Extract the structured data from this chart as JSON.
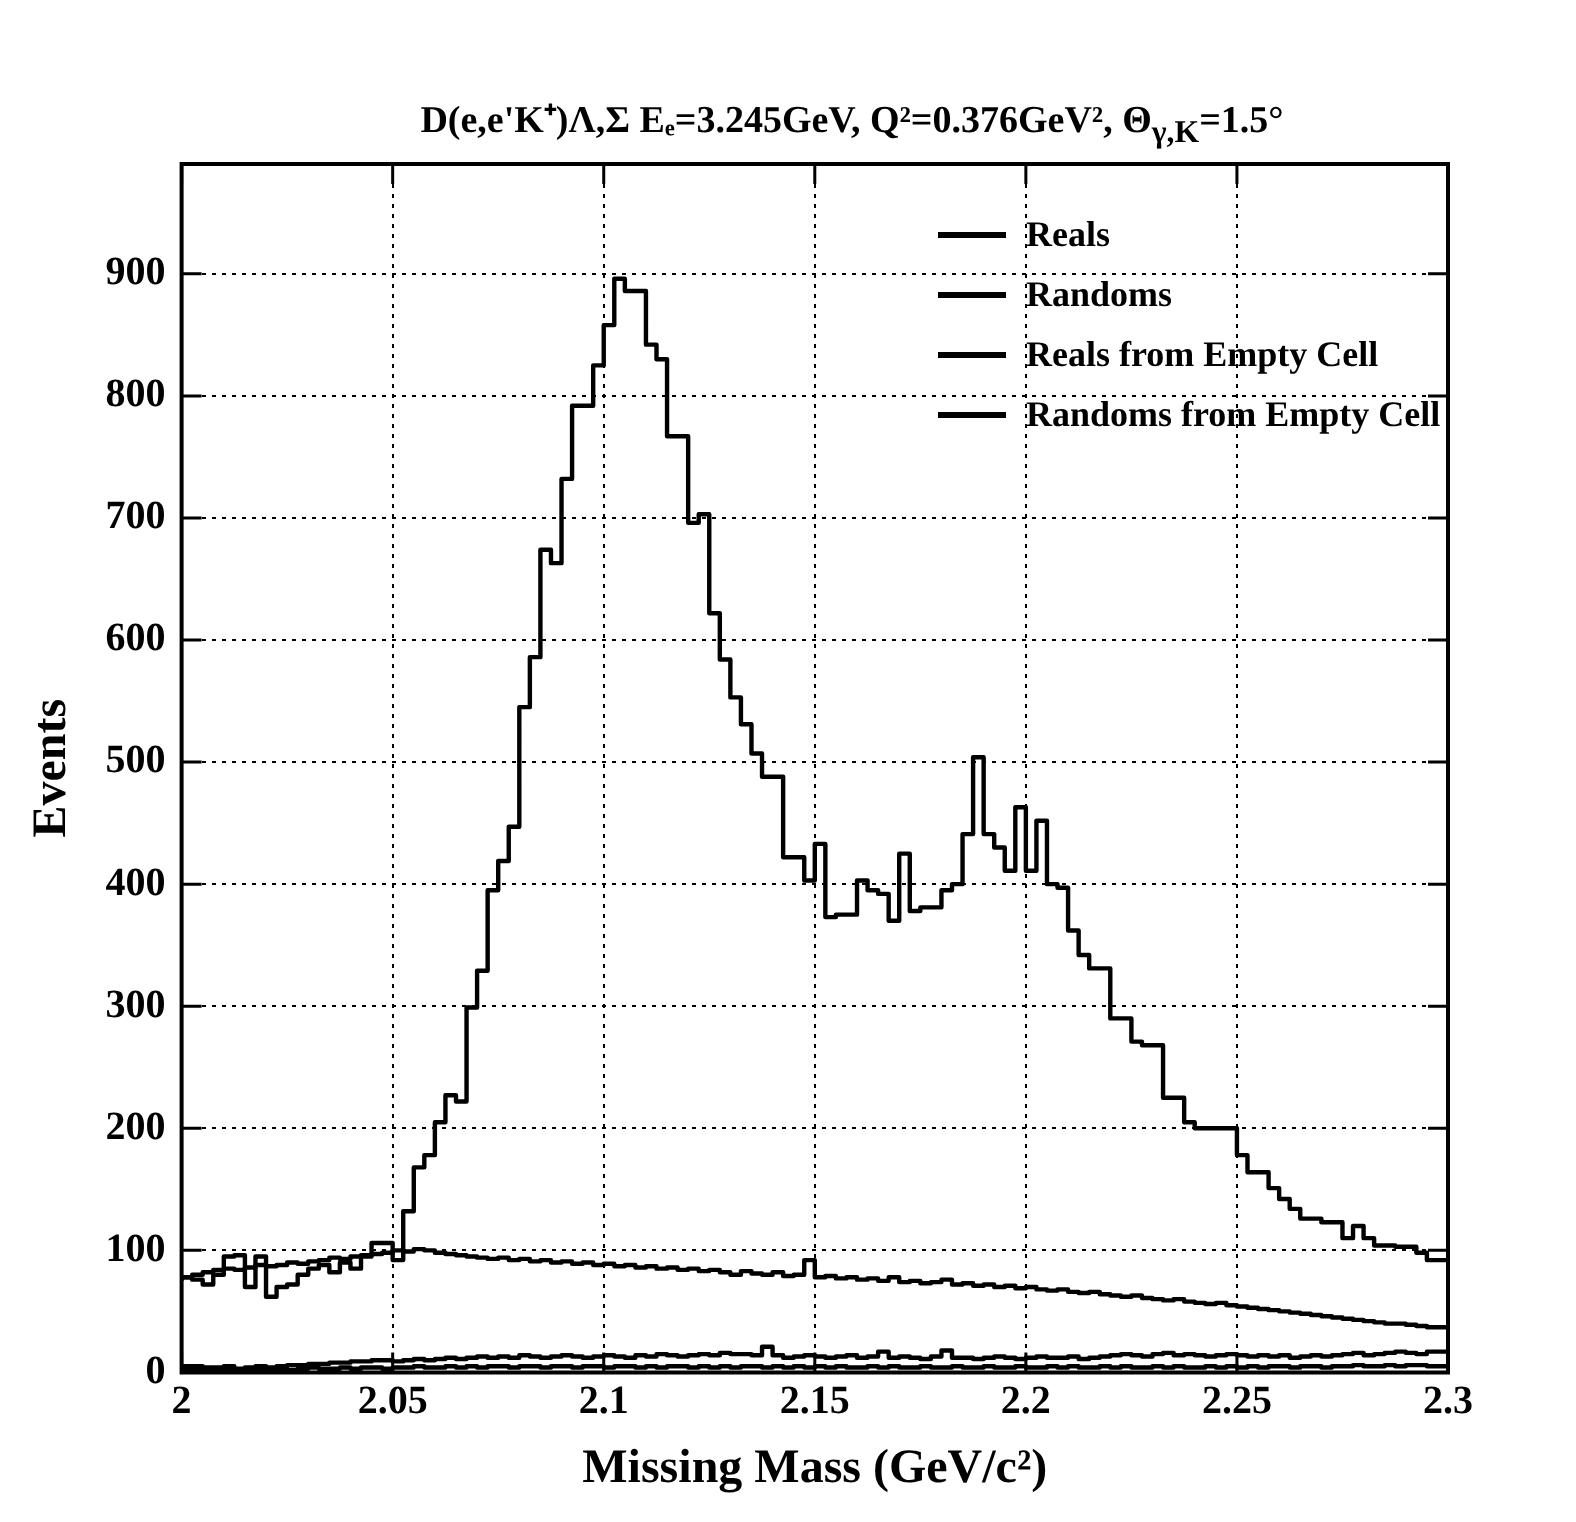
{
  "chart_data": {
    "type": "step",
    "title": "D(e,e'K⁺)Λ,Σ   Eₑ=3.245GeV, Q²=0.376GeV², Θ$_{γ,K}$=1.5°",
    "xlabel": "Missing Mass (GeV/c²)",
    "ylabel": "Events",
    "x": [
      2,
      2.0025,
      2.005,
      2.0075,
      2.01,
      2.0125,
      2.015,
      2.0175,
      2.02,
      2.0225,
      2.025,
      2.0275,
      2.03,
      2.0325,
      2.035,
      2.0375,
      2.04,
      2.0425,
      2.045,
      2.0475,
      2.05,
      2.0525,
      2.055,
      2.0575,
      2.06,
      2.0625,
      2.065,
      2.0675,
      2.07,
      2.0725,
      2.075,
      2.0775,
      2.08,
      2.0825,
      2.085,
      2.0875,
      2.09,
      2.0925,
      2.095,
      2.0975,
      2.1,
      2.1025,
      2.105,
      2.1075,
      2.11,
      2.1125,
      2.115,
      2.1175,
      2.12,
      2.1225,
      2.125,
      2.1275,
      2.13,
      2.1325,
      2.135,
      2.1375,
      2.14,
      2.1425,
      2.145,
      2.1475,
      2.15,
      2.1525,
      2.155,
      2.1575,
      2.16,
      2.1625,
      2.165,
      2.1675,
      2.17,
      2.1725,
      2.175,
      2.1775,
      2.18,
      2.1825,
      2.185,
      2.1875,
      2.19,
      2.1925,
      2.195,
      2.1975,
      2.2,
      2.2025,
      2.205,
      2.2075,
      2.21,
      2.2125,
      2.215,
      2.2175,
      2.22,
      2.2225,
      2.225,
      2.2275,
      2.23,
      2.2325,
      2.235,
      2.2375,
      2.24,
      2.2425,
      2.245,
      2.2475,
      2.25,
      2.2525,
      2.255,
      2.2575,
      2.26,
      2.2625,
      2.265,
      2.2675,
      2.27,
      2.2725,
      2.275,
      2.2775,
      2.28,
      2.2825,
      2.285,
      2.2875,
      2.29,
      2.2925,
      2.295,
      2.2975,
      2.3
    ],
    "series": [
      {
        "name": "Reals",
        "color": "#000000",
        "values": [
          75,
          78,
          76,
          72,
          80,
          95,
          96,
          70,
          95,
          62,
          70,
          72,
          80,
          85,
          88,
          82,
          90,
          85,
          95,
          106,
          106,
          92,
          132,
          168,
          178,
          205,
          227,
          222,
          299,
          329,
          395,
          419,
          447,
          545,
          586,
          674,
          663,
          732,
          792,
          792,
          825,
          858,
          896,
          886,
          886,
          842,
          830,
          767,
          767,
          696,
          703,
          622,
          584,
          553,
          531,
          507,
          488,
          488,
          422,
          422,
          403,
          433,
          373,
          375,
          375,
          403,
          395,
          392,
          370,
          425,
          378,
          381,
          381,
          395,
          400,
          441,
          504,
          441,
          430,
          411,
          463,
          411,
          452,
          400,
          397,
          362,
          342,
          331,
          331,
          290,
          290,
          271,
          268,
          268,
          225,
          225,
          205,
          200,
          200,
          200,
          200,
          178,
          164,
          164,
          151,
          142,
          134,
          126,
          126,
          123,
          123,
          110,
          120,
          110,
          104,
          104,
          103,
          103,
          98,
          92,
          92
        ]
      },
      {
        "name": "Randoms",
        "color": "#000000",
        "values": [
          75,
          78,
          80,
          82,
          84,
          85,
          84,
          86,
          88,
          87,
          88,
          90,
          89,
          91,
          92,
          94,
          93,
          95,
          96,
          97,
          98,
          100,
          99,
          101,
          100,
          98,
          97,
          96,
          95,
          94,
          93,
          94,
          92,
          93,
          91,
          92,
          90,
          91,
          89,
          90,
          88,
          89,
          87,
          88,
          86,
          87,
          85,
          86,
          84,
          85,
          83,
          84,
          82,
          80,
          83,
          81,
          80,
          82,
          79,
          80,
          92,
          78,
          79,
          77,
          78,
          76,
          77,
          75,
          78,
          74,
          75,
          73,
          74,
          76,
          72,
          73,
          71,
          72,
          70,
          71,
          69,
          70,
          68,
          67,
          68,
          66,
          65,
          66,
          64,
          63,
          62,
          63,
          61,
          60,
          59,
          60,
          58,
          57,
          56,
          57,
          55,
          54,
          53,
          52,
          51,
          50,
          49,
          48,
          47,
          46,
          45,
          44,
          43,
          42,
          41,
          40,
          40,
          39,
          38,
          37,
          37
        ]
      },
      {
        "name": "Reals from Empty Cell",
        "color": "#000000",
        "values": [
          6,
          5,
          5,
          4,
          4,
          5,
          3,
          4,
          5,
          4,
          5,
          6,
          6,
          7,
          7,
          8,
          8,
          9,
          9,
          10,
          10,
          9,
          10,
          11,
          10,
          11,
          12,
          11,
          12,
          13,
          12,
          13,
          12,
          14,
          13,
          12,
          13,
          14,
          13,
          12,
          13,
          14,
          13,
          12,
          14,
          13,
          15,
          14,
          13,
          14,
          15,
          14,
          16,
          15,
          15,
          14,
          21,
          14,
          12,
          13,
          14,
          13,
          12,
          13,
          14,
          12,
          13,
          17,
          12,
          13,
          12,
          11,
          13,
          18,
          12,
          12,
          11,
          12,
          13,
          12,
          11,
          12,
          13,
          12,
          12,
          13,
          11,
          12,
          13,
          14,
          15,
          14,
          13,
          15,
          16,
          14,
          15,
          14,
          13,
          14,
          15,
          14,
          13,
          14,
          13,
          14,
          12,
          13,
          14,
          13,
          14,
          15,
          16,
          14,
          15,
          16,
          17,
          16,
          15,
          17,
          17
        ]
      },
      {
        "name": "Randoms from Empty Cell",
        "color": "#000000",
        "values": [
          3,
          2,
          3,
          2,
          2,
          3,
          2,
          3,
          2,
          3,
          3,
          2,
          3,
          4,
          3,
          3,
          4,
          3,
          4,
          4,
          3,
          4,
          4,
          5,
          4,
          4,
          5,
          4,
          5,
          4,
          5,
          5,
          4,
          5,
          5,
          4,
          5,
          5,
          4,
          5,
          5,
          4,
          5,
          5,
          4,
          5,
          4,
          5,
          5,
          4,
          5,
          4,
          5,
          4,
          5,
          5,
          4,
          5,
          4,
          5,
          4,
          5,
          4,
          5,
          4,
          4,
          5,
          4,
          5,
          4,
          4,
          5,
          4,
          4,
          5,
          4,
          4,
          5,
          4,
          4,
          5,
          4,
          4,
          5,
          4,
          5,
          4,
          4,
          5,
          4,
          5,
          4,
          4,
          5,
          4,
          5,
          4,
          4,
          5,
          4,
          5,
          4,
          5,
          4,
          5,
          5,
          4,
          5,
          5,
          4,
          5,
          5,
          6,
          5,
          5,
          6,
          5,
          6,
          6,
          5,
          5
        ]
      }
    ],
    "xlim": [
      2,
      2.3
    ],
    "xticks": [
      2,
      2.05,
      2.1,
      2.15,
      2.2,
      2.25,
      2.3
    ],
    "ylim": [
      0,
      990
    ],
    "yticks": [
      0,
      100,
      200,
      300,
      400,
      500,
      600,
      700,
      800,
      900
    ],
    "grid": true,
    "legend": "top right"
  }
}
